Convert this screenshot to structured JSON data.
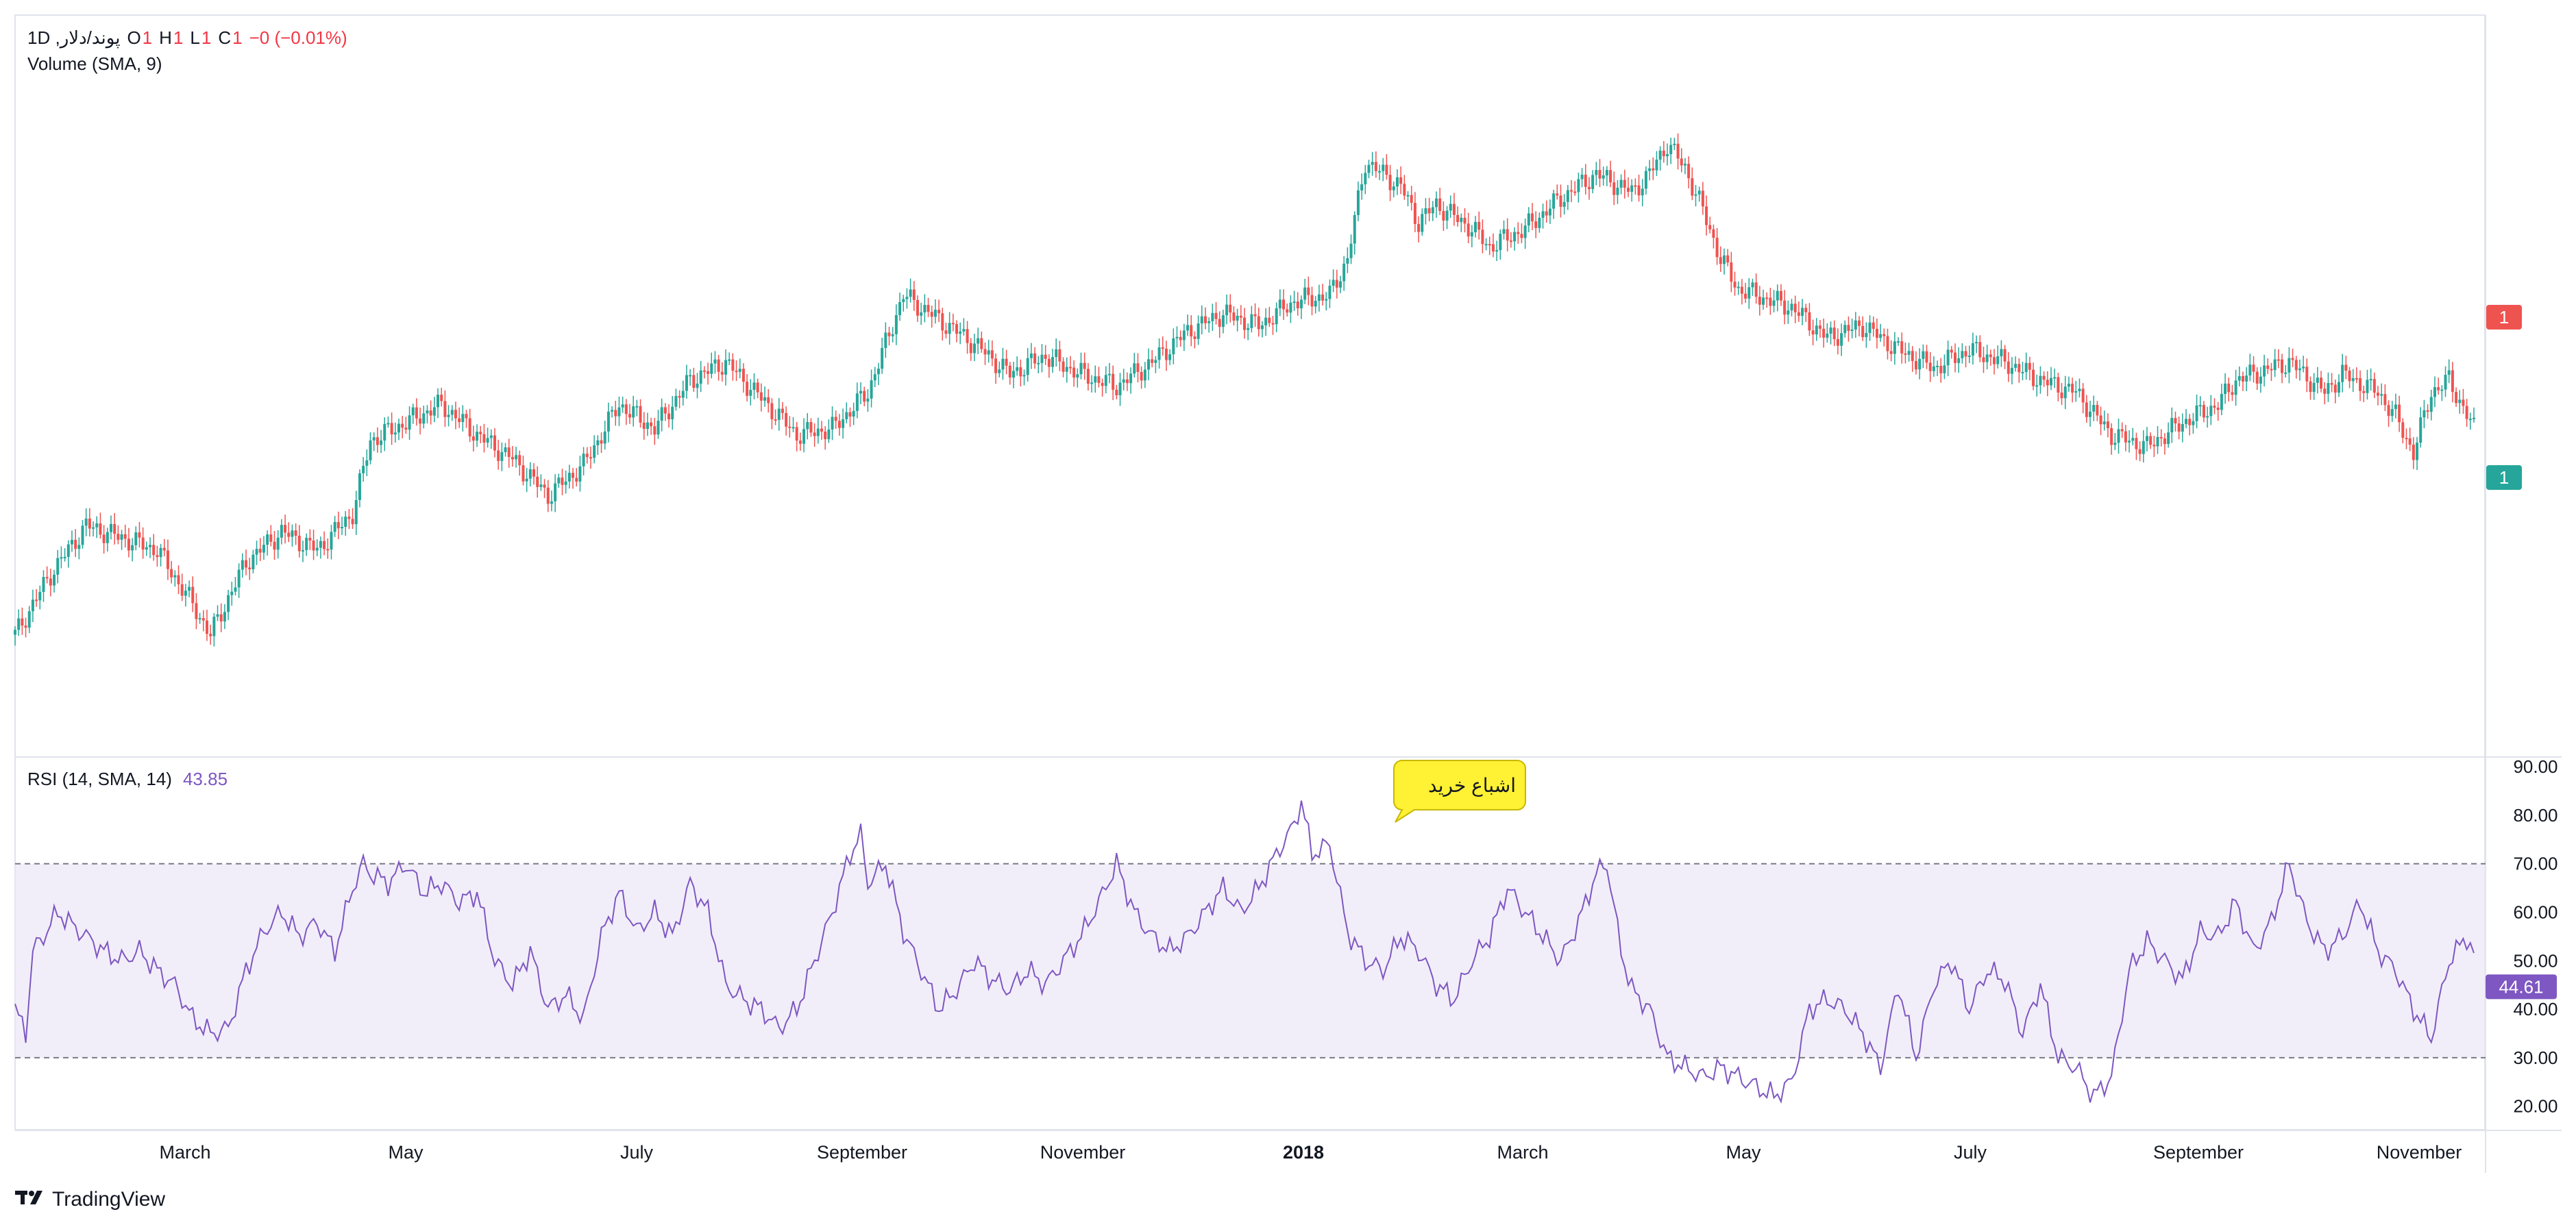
{
  "legend": {
    "symbol": "پوند/دلار, 1D",
    "o_label": "O",
    "o_value": "1",
    "h_label": "H",
    "h_value": "1",
    "l_label": "L",
    "l_value": "1",
    "c_label": "C",
    "c_value": "1",
    "change": "−0 (−0.01%)",
    "volume": "Volume (SMA, 9)",
    "rsi_label": "RSI (14, SMA, 14)",
    "rsi_value": "43.85"
  },
  "branding": {
    "name": "TradingView"
  },
  "colors": {
    "up": "#26a69a",
    "down": "#ef5350",
    "rsi_line": "#7e57c2",
    "rsi_band": "#ede7f6",
    "grid_border": "#e0e3eb",
    "callout": "#fff133"
  },
  "chart_data": [
    {
      "type": "candlestick",
      "title": "",
      "x_labels": [
        "March",
        "May",
        "July",
        "September",
        "November",
        "2018",
        "March",
        "May",
        "July",
        "September",
        "November"
      ],
      "price_labels": [
        {
          "text": "1",
          "side": "sell",
          "color": "#ef5350"
        },
        {
          "text": "1",
          "side": "buy",
          "color": "#26a69a"
        }
      ],
      "close_trace": [
        [
          0,
          0.1
        ],
        [
          10,
          0.2
        ],
        [
          20,
          0.28
        ],
        [
          30,
          0.26
        ],
        [
          40,
          0.24
        ],
        [
          50,
          0.15
        ],
        [
          55,
          0.1
        ],
        [
          65,
          0.22
        ],
        [
          75,
          0.27
        ],
        [
          85,
          0.24
        ],
        [
          95,
          0.3
        ],
        [
          100,
          0.42
        ],
        [
          110,
          0.45
        ],
        [
          120,
          0.48
        ],
        [
          130,
          0.43
        ],
        [
          140,
          0.39
        ],
        [
          150,
          0.33
        ],
        [
          160,
          0.38
        ],
        [
          170,
          0.48
        ],
        [
          180,
          0.44
        ],
        [
          190,
          0.52
        ],
        [
          200,
          0.55
        ],
        [
          210,
          0.49
        ],
        [
          220,
          0.43
        ],
        [
          230,
          0.44
        ],
        [
          240,
          0.5
        ],
        [
          250,
          0.66
        ],
        [
          260,
          0.62
        ],
        [
          270,
          0.58
        ],
        [
          280,
          0.53
        ],
        [
          290,
          0.56
        ],
        [
          300,
          0.53
        ],
        [
          310,
          0.51
        ],
        [
          320,
          0.55
        ],
        [
          330,
          0.6
        ],
        [
          340,
          0.63
        ],
        [
          350,
          0.61
        ],
        [
          360,
          0.65
        ],
        [
          370,
          0.66
        ],
        [
          375,
          0.72
        ],
        [
          380,
          0.88
        ],
        [
          390,
          0.84
        ],
        [
          395,
          0.78
        ],
        [
          400,
          0.81
        ],
        [
          410,
          0.77
        ],
        [
          415,
          0.74
        ],
        [
          425,
          0.77
        ],
        [
          435,
          0.82
        ],
        [
          445,
          0.86
        ],
        [
          455,
          0.83
        ],
        [
          460,
          0.86
        ],
        [
          465,
          0.91
        ],
        [
          470,
          0.87
        ],
        [
          475,
          0.8
        ],
        [
          480,
          0.72
        ],
        [
          485,
          0.67
        ],
        [
          490,
          0.66
        ],
        [
          500,
          0.64
        ],
        [
          510,
          0.59
        ],
        [
          520,
          0.61
        ],
        [
          530,
          0.57
        ],
        [
          540,
          0.54
        ],
        [
          550,
          0.57
        ],
        [
          560,
          0.55
        ],
        [
          570,
          0.52
        ],
        [
          580,
          0.5
        ],
        [
          590,
          0.43
        ],
        [
          600,
          0.41
        ],
        [
          610,
          0.45
        ],
        [
          620,
          0.48
        ],
        [
          625,
          0.52
        ],
        [
          635,
          0.54
        ],
        [
          640,
          0.55
        ],
        [
          650,
          0.5
        ],
        [
          655,
          0.53
        ],
        [
          665,
          0.5
        ],
        [
          670,
          0.46
        ],
        [
          675,
          0.4
        ],
        [
          680,
          0.5
        ],
        [
          685,
          0.52
        ],
        [
          692,
          0.44
        ]
      ],
      "price_range": [
        0,
        1
      ]
    },
    {
      "type": "line",
      "title": "RSI (14, SMA, 14)",
      "y_ticks": [
        90,
        80,
        70,
        60,
        50,
        40,
        30,
        20
      ],
      "ylim": [
        15,
        92
      ],
      "bands": {
        "upper": 70,
        "lower": 30
      },
      "current_value": "44.61",
      "annotation": "اشباع خرید",
      "x_labels": [
        "March",
        "May",
        "July",
        "September",
        "November",
        "2018",
        "March",
        "May",
        "July",
        "September",
        "November"
      ],
      "series": [
        {
          "values_trace": [
            [
              0,
              40
            ],
            [
              3,
              35
            ],
            [
              5,
              52
            ],
            [
              8,
              55
            ],
            [
              12,
              60
            ],
            [
              15,
              58
            ],
            [
              20,
              55
            ],
            [
              25,
              52
            ],
            [
              30,
              50
            ],
            [
              35,
              52
            ],
            [
              40,
              48
            ],
            [
              45,
              45
            ],
            [
              50,
              38
            ],
            [
              55,
              35
            ],
            [
              60,
              36
            ],
            [
              65,
              48
            ],
            [
              70,
              56
            ],
            [
              75,
              60
            ],
            [
              80,
              55
            ],
            [
              85,
              58
            ],
            [
              90,
              52
            ],
            [
              95,
              65
            ],
            [
              98,
              70
            ],
            [
              100,
              68
            ],
            [
              105,
              66
            ],
            [
              110,
              70
            ],
            [
              115,
              64
            ],
            [
              120,
              66
            ],
            [
              125,
              62
            ],
            [
              130,
              64
            ],
            [
              135,
              50
            ],
            [
              140,
              45
            ],
            [
              145,
              52
            ],
            [
              150,
              40
            ],
            [
              155,
              43
            ],
            [
              160,
              38
            ],
            [
              165,
              55
            ],
            [
              170,
              64
            ],
            [
              175,
              56
            ],
            [
              180,
              60
            ],
            [
              185,
              55
            ],
            [
              190,
              66
            ],
            [
              195,
              60
            ],
            [
              200,
              45
            ],
            [
              205,
              42
            ],
            [
              210,
              40
            ],
            [
              215,
              36
            ],
            [
              220,
              40
            ],
            [
              225,
              50
            ],
            [
              230,
              60
            ],
            [
              235,
              72
            ],
            [
              238,
              76
            ],
            [
              240,
              66
            ],
            [
              245,
              70
            ],
            [
              250,
              56
            ],
            [
              255,
              48
            ],
            [
              260,
              40
            ],
            [
              265,
              44
            ],
            [
              270,
              50
            ],
            [
              275,
              46
            ],
            [
              280,
              44
            ],
            [
              285,
              48
            ],
            [
              290,
              45
            ],
            [
              295,
              50
            ],
            [
              300,
              55
            ],
            [
              305,
              62
            ],
            [
              310,
              70
            ],
            [
              315,
              60
            ],
            [
              320,
              55
            ],
            [
              325,
              52
            ],
            [
              330,
              55
            ],
            [
              335,
              60
            ],
            [
              340,
              65
            ],
            [
              345,
              60
            ],
            [
              350,
              65
            ],
            [
              355,
              72
            ],
            [
              360,
              78
            ],
            [
              362,
              83
            ],
            [
              365,
              72
            ],
            [
              370,
              74
            ],
            [
              375,
              56
            ],
            [
              380,
              50
            ],
            [
              385,
              48
            ],
            [
              390,
              55
            ],
            [
              395,
              52
            ],
            [
              400,
              45
            ],
            [
              405,
              42
            ],
            [
              410,
              50
            ],
            [
              415,
              55
            ],
            [
              420,
              65
            ],
            [
              425,
              60
            ],
            [
              430,
              55
            ],
            [
              435,
              50
            ],
            [
              440,
              58
            ],
            [
              445,
              68
            ],
            [
              448,
              70
            ],
            [
              452,
              52
            ],
            [
              455,
              44
            ],
            [
              460,
              40
            ],
            [
              465,
              30
            ],
            [
              470,
              28
            ],
            [
              475,
              26
            ],
            [
              480,
              28
            ],
            [
              485,
              26
            ],
            [
              490,
              24
            ],
            [
              495,
              22
            ],
            [
              500,
              25
            ],
            [
              505,
              40
            ],
            [
              510,
              42
            ],
            [
              515,
              40
            ],
            [
              520,
              35
            ],
            [
              525,
              28
            ],
            [
              530,
              45
            ],
            [
              535,
              30
            ],
            [
              540,
              45
            ],
            [
              545,
              50
            ],
            [
              550,
              40
            ],
            [
              555,
              48
            ],
            [
              560,
              46
            ],
            [
              565,
              35
            ],
            [
              570,
              45
            ],
            [
              575,
              30
            ],
            [
              580,
              28
            ],
            [
              585,
              22
            ],
            [
              590,
              26
            ],
            [
              595,
              48
            ],
            [
              600,
              54
            ],
            [
              605,
              50
            ],
            [
              610,
              46
            ],
            [
              615,
              56
            ],
            [
              620,
              55
            ],
            [
              625,
              62
            ],
            [
              630,
              52
            ],
            [
              635,
              58
            ],
            [
              640,
              70
            ],
            [
              645,
              58
            ],
            [
              650,
              52
            ],
            [
              655,
              55
            ],
            [
              660,
              62
            ],
            [
              665,
              52
            ],
            [
              670,
              48
            ],
            [
              675,
              40
            ],
            [
              680,
              34
            ],
            [
              685,
              50
            ],
            [
              690,
              55
            ],
            [
              695,
              45
            ]
          ]
        }
      ]
    }
  ]
}
